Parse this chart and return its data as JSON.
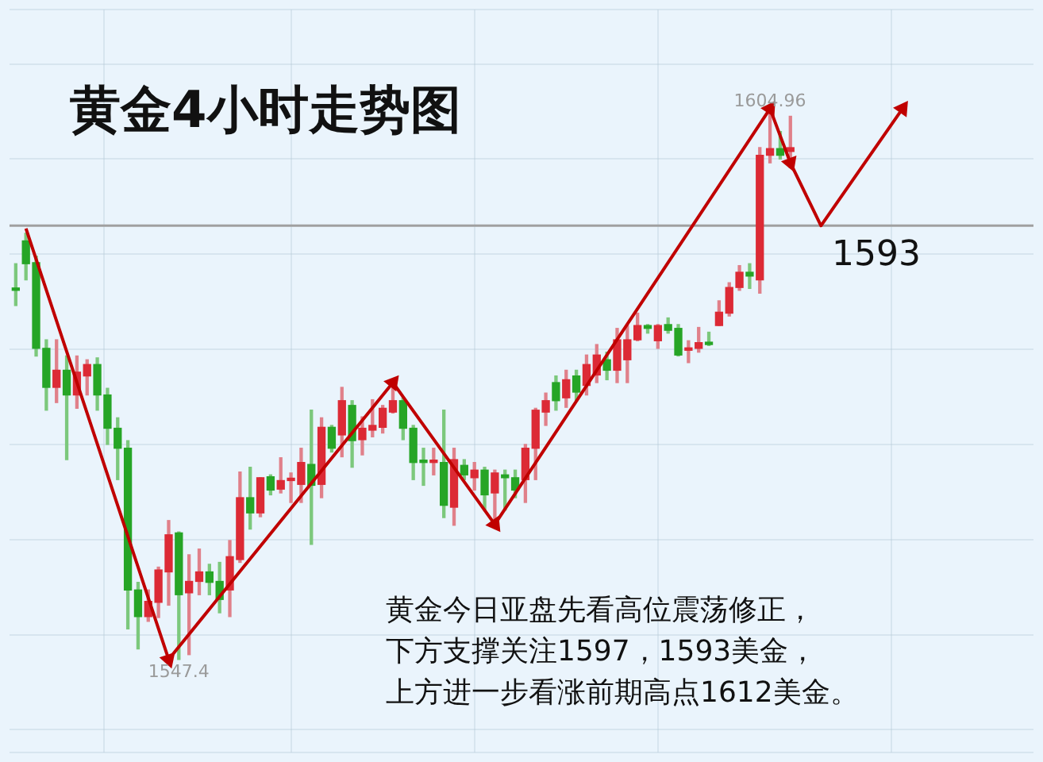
{
  "chart_data": {
    "type": "candlestick",
    "title": "黄金4小时走势图",
    "categories": [
      null,
      null,
      null,
      null,
      null,
      null,
      null,
      null,
      null,
      null,
      null,
      null,
      null,
      null,
      null,
      null,
      null,
      null,
      null,
      null,
      null,
      null,
      null,
      null,
      null,
      null,
      null,
      null,
      null,
      null,
      null,
      null,
      null,
      null,
      null,
      null,
      null,
      null,
      null,
      null,
      null,
      null,
      null,
      null,
      null,
      null,
      null,
      null,
      null,
      null,
      null,
      null,
      null,
      null,
      null,
      null,
      null,
      null,
      null,
      null,
      null,
      null,
      null,
      null,
      null,
      null,
      null,
      null,
      null,
      null,
      null,
      null,
      null,
      null,
      null,
      null,
      null,
      null,
      null,
      null,
      null,
      null,
      null,
      null,
      null,
      null,
      null,
      null
    ],
    "ohlc": [
      [
        1586.4,
        1589.0,
        1584.6,
        1586.2
      ],
      [
        1591.4,
        1592.2,
        1587.3,
        1589.0
      ],
      [
        1589.1,
        1589.8,
        1579.3,
        1580.1
      ],
      [
        1580.1,
        1581.0,
        1573.6,
        1576.0
      ],
      [
        1576.0,
        1581.0,
        1574.4,
        1577.8
      ],
      [
        1577.8,
        1579.3,
        1568.4,
        1575.2
      ],
      [
        1575.2,
        1579.3,
        1573.8,
        1577.6
      ],
      [
        1577.2,
        1578.9,
        1575.2,
        1578.4
      ],
      [
        1578.4,
        1579.1,
        1573.6,
        1575.2
      ],
      [
        1575.2,
        1575.9,
        1570.0,
        1571.7
      ],
      [
        1571.7,
        1572.8,
        1566.3,
        1569.6
      ],
      [
        1569.6,
        1570.4,
        1550.6,
        1554.7
      ],
      [
        1554.7,
        1555.5,
        1548.5,
        1551.9
      ],
      [
        1551.9,
        1554.7,
        1551.4,
        1553.5
      ],
      [
        1553.4,
        1557.1,
        1551.8,
        1556.8
      ],
      [
        1556.6,
        1562.0,
        1553.1,
        1560.5
      ],
      [
        1560.7,
        1560.8,
        1547.4,
        1554.2
      ],
      [
        1554.4,
        1558.4,
        1547.9,
        1555.6
      ],
      [
        1555.6,
        1559.0,
        1554.2,
        1556.6
      ],
      [
        1556.6,
        1557.4,
        1554.2,
        1555.5
      ],
      [
        1555.6,
        1557.6,
        1552.3,
        1553.7
      ],
      [
        1554.7,
        1559.9,
        1551.9,
        1558.2
      ],
      [
        1557.9,
        1567.1,
        1557.6,
        1564.4
      ],
      [
        1564.4,
        1567.6,
        1561.1,
        1562.8
      ],
      [
        1562.8,
        1566.5,
        1562.4,
        1566.5
      ],
      [
        1566.6,
        1566.8,
        1564.7,
        1565.2
      ],
      [
        1565.3,
        1568.6,
        1564.9,
        1566.2
      ],
      [
        1566.2,
        1567.0,
        1563.9,
        1566.3
      ],
      [
        1565.8,
        1569.6,
        1563.9,
        1568.1
      ],
      [
        1567.9,
        1573.6,
        1559.5,
        1565.7
      ],
      [
        1565.8,
        1572.8,
        1564.4,
        1571.8
      ],
      [
        1571.8,
        1572.0,
        1569.2,
        1569.6
      ],
      [
        1571.0,
        1576.0,
        1568.7,
        1574.6
      ],
      [
        1574.1,
        1574.6,
        1567.6,
        1570.4
      ],
      [
        1570.5,
        1572.9,
        1568.9,
        1571.7
      ],
      [
        1571.5,
        1574.7,
        1570.8,
        1572.0
      ],
      [
        1571.8,
        1574.1,
        1571.2,
        1573.8
      ],
      [
        1573.4,
        1576.5,
        1573.3,
        1574.6
      ],
      [
        1574.6,
        1574.9,
        1570.5,
        1571.7
      ],
      [
        1571.7,
        1572.0,
        1566.3,
        1568.1
      ],
      [
        1568.3,
        1569.6,
        1565.7,
        1568.1
      ],
      [
        1568.1,
        1569.6,
        1566.8,
        1568.3
      ],
      [
        1568.1,
        1573.6,
        1562.3,
        1563.6
      ],
      [
        1563.4,
        1569.6,
        1561.5,
        1568.4
      ],
      [
        1567.8,
        1568.4,
        1566.3,
        1566.8
      ],
      [
        1566.5,
        1568.1,
        1565.2,
        1567.3
      ],
      [
        1567.3,
        1567.6,
        1563.1,
        1564.7
      ],
      [
        1564.9,
        1567.3,
        1562.0,
        1567.0
      ],
      [
        1566.8,
        1567.3,
        1563.1,
        1566.5
      ],
      [
        1566.5,
        1567.3,
        1564.4,
        1565.2
      ],
      [
        1566.3,
        1570.0,
        1563.9,
        1569.6
      ],
      [
        1569.6,
        1573.8,
        1566.3,
        1573.6
      ],
      [
        1573.4,
        1575.4,
        1572.0,
        1574.6
      ],
      [
        1576.5,
        1577.2,
        1573.6,
        1574.6
      ],
      [
        1574.9,
        1577.8,
        1573.9,
        1576.8
      ],
      [
        1577.2,
        1577.8,
        1574.6,
        1575.5
      ],
      [
        1576.2,
        1579.4,
        1575.2,
        1578.4
      ],
      [
        1577.3,
        1580.5,
        1576.5,
        1579.4
      ],
      [
        1578.9,
        1579.7,
        1576.8,
        1577.8
      ],
      [
        1577.8,
        1582.2,
        1576.5,
        1581.0
      ],
      [
        1578.9,
        1582.5,
        1576.5,
        1581.0
      ],
      [
        1581.0,
        1583.8,
        1580.9,
        1582.5
      ],
      [
        1582.5,
        1582.6,
        1581.7,
        1582.2
      ],
      [
        1580.9,
        1582.6,
        1580.1,
        1582.5
      ],
      [
        1582.6,
        1583.3,
        1581.7,
        1582.0
      ],
      [
        1582.2,
        1582.6,
        1579.3,
        1579.4
      ],
      [
        1579.9,
        1580.9,
        1578.6,
        1580.1
      ],
      [
        1580.1,
        1582.3,
        1579.7,
        1580.7
      ],
      [
        1580.7,
        1581.8,
        1580.4,
        1580.5
      ],
      [
        1582.5,
        1585.1,
        1582.5,
        1583.9
      ],
      [
        1583.8,
        1587.0,
        1583.5,
        1586.5
      ],
      [
        1586.5,
        1588.8,
        1586.2,
        1588.1
      ],
      [
        1588.1,
        1589.0,
        1586.4,
        1587.7
      ],
      [
        1587.3,
        1601.2,
        1585.9,
        1600.4
      ],
      [
        1600.4,
        1604.96,
        1599.6,
        1601.1
      ],
      [
        1601.1,
        1602.9,
        1600.0,
        1600.4
      ],
      [
        1600.8,
        1604.5,
        1599.1,
        1601.2
      ],
      null,
      null,
      null,
      null,
      null,
      null,
      null,
      null,
      null,
      null,
      null
    ],
    "series": [
      {
        "type": "line",
        "color": "#c00000",
        "marker": "triangle",
        "values": [
          null,
          1592.7,
          null,
          null,
          null,
          null,
          null,
          null,
          null,
          null,
          null,
          null,
          null,
          null,
          null,
          1547.4,
          null,
          null,
          null,
          null,
          null,
          null,
          null,
          null,
          null,
          null,
          null,
          null,
          null,
          null,
          null,
          null,
          null,
          null,
          null,
          null,
          null,
          1576.5,
          null,
          null,
          null,
          null,
          null,
          null,
          null,
          null,
          null,
          1561.6,
          null,
          null,
          null,
          null,
          null,
          null,
          null,
          null,
          null,
          null,
          null,
          null,
          null,
          null,
          null,
          null,
          null,
          null,
          null,
          null,
          null,
          null,
          null,
          null,
          null,
          null,
          1605.3,
          null,
          1599.6,
          null,
          null,
          1593,
          null,
          null,
          null,
          null,
          null,
          null,
          null,
          1605.3
        ]
      }
    ],
    "ref_lines": [
      {
        "axis": "y",
        "value": 1593,
        "label": "1593"
      }
    ],
    "annotations": [
      "黄金今日亚盘先看高位震荡修正，",
      "下方支撑关注1597，1593美金，",
      "上方进一步看涨前期高点1612美金。",
      {
        "text": "1604.96",
        "y": 1604.96
      },
      {
        "text": "1547.4",
        "y": 1547.4
      }
    ],
    "grid": true
  }
}
